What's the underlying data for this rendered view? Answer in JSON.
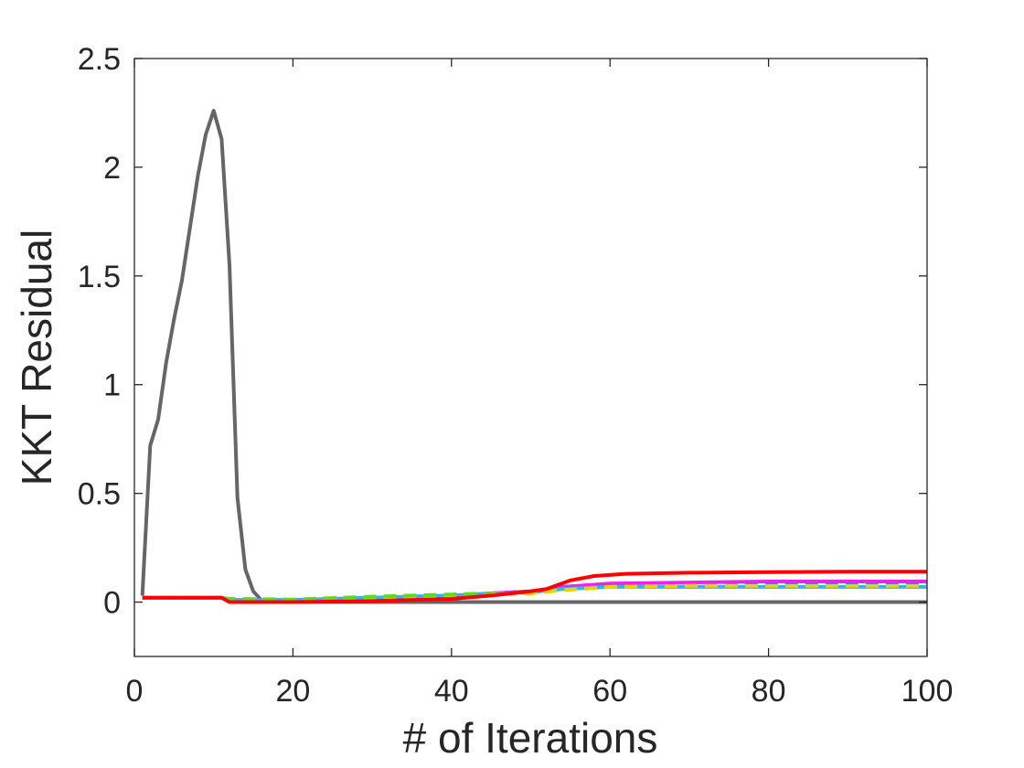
{
  "chart_data": {
    "type": "line",
    "xlabel": "# of Iterations",
    "ylabel": "KKT Residual",
    "xlim": [
      0,
      100
    ],
    "ylim": [
      -0.25,
      2.5
    ],
    "x_ticks": [
      "0",
      "20",
      "40",
      "60",
      "80",
      "100"
    ],
    "y_ticks": [
      "0",
      "0.5",
      "1",
      "1.5",
      "2",
      "2.5"
    ],
    "grid": false,
    "legend": "none",
    "series": [
      {
        "color": "#666666",
        "dash": "solid",
        "x": [
          1,
          2,
          3,
          4,
          5,
          6,
          7,
          8,
          9,
          10,
          11,
          12,
          13,
          14,
          15,
          16,
          17,
          20,
          40,
          60,
          80,
          100
        ],
        "y": [
          0.03,
          0.72,
          0.84,
          1.1,
          1.3,
          1.48,
          1.72,
          1.96,
          2.15,
          2.26,
          2.13,
          1.55,
          0.48,
          0.15,
          0.05,
          0.01,
          0.0,
          0.0,
          0.0,
          0.0,
          0.0,
          0.0
        ]
      },
      {
        "color": "#1a66ff",
        "dash": "dashed",
        "x": [
          1,
          11,
          12,
          20,
          30,
          40,
          50,
          54,
          60,
          70,
          80,
          100
        ],
        "y": [
          0.02,
          0.02,
          0.01,
          0.01,
          0.02,
          0.03,
          0.05,
          0.07,
          0.08,
          0.088,
          0.09,
          0.09
        ]
      },
      {
        "color": "#ee22ee",
        "dash": "solid",
        "x": [
          1,
          11,
          12,
          20,
          30,
          40,
          50,
          54,
          60,
          70,
          80,
          100
        ],
        "y": [
          0.02,
          0.02,
          0.01,
          0.01,
          0.02,
          0.03,
          0.05,
          0.07,
          0.085,
          0.09,
          0.095,
          0.095
        ]
      },
      {
        "color": "#2bb5ff",
        "dash": "solid",
        "x": [
          1,
          11,
          12,
          20,
          30,
          40,
          50,
          54,
          60,
          70,
          80,
          100
        ],
        "y": [
          0.02,
          0.02,
          0.01,
          0.01,
          0.02,
          0.03,
          0.045,
          0.06,
          0.07,
          0.07,
          0.07,
          0.07
        ]
      },
      {
        "color": "#f0d000",
        "dash": "dashed",
        "x": [
          1,
          11,
          12,
          20,
          30,
          40,
          50,
          54,
          60,
          70,
          80,
          100
        ],
        "y": [
          0.02,
          0.02,
          0.01,
          0.01,
          0.02,
          0.03,
          0.04,
          0.055,
          0.07,
          0.075,
          0.075,
          0.075
        ]
      },
      {
        "color": "#55dd22",
        "dash": "dashed",
        "x": [
          1,
          11,
          12,
          20,
          30,
          40,
          45
        ],
        "y": [
          0.02,
          0.02,
          0.015,
          0.012,
          0.025,
          0.035,
          0.04
        ]
      },
      {
        "color": "#ff0000",
        "dash": "solid",
        "x": [
          1,
          11,
          12,
          20,
          30,
          40,
          45,
          50,
          52,
          55,
          58,
          62,
          70,
          80,
          90,
          100
        ],
        "y": [
          0.02,
          0.02,
          0.0,
          0.0,
          0.005,
          0.015,
          0.03,
          0.05,
          0.06,
          0.1,
          0.12,
          0.13,
          0.135,
          0.138,
          0.14,
          0.14
        ]
      }
    ]
  }
}
